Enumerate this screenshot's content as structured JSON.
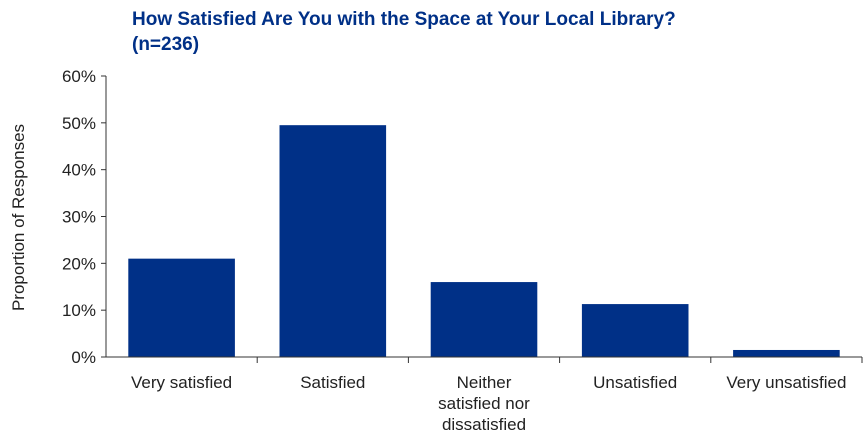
{
  "chart_data": {
    "type": "bar",
    "title_lines": [
      "How Satisfied Are You with the Space at Your Local Library?",
      "(n=236)"
    ],
    "xlabel": "",
    "ylabel": "Proportion of Responses",
    "ylim": [
      0,
      60
    ],
    "ytick_step": 10,
    "ytick_labels": [
      "0%",
      "10%",
      "20%",
      "30%",
      "40%",
      "50%",
      "60%"
    ],
    "categories": [
      [
        "Very satisfied"
      ],
      [
        "Satisfied"
      ],
      [
        "Neither",
        "satisfied nor",
        "dissatisfied"
      ],
      [
        "Unsatisfied"
      ],
      [
        "Very unsatisfied"
      ]
    ],
    "values": [
      21,
      49.5,
      16,
      11.3,
      1.5
    ],
    "grid": false,
    "legend": "none",
    "colors": {
      "bar": "#003087",
      "title": "#003087",
      "axis": "#333333"
    }
  }
}
